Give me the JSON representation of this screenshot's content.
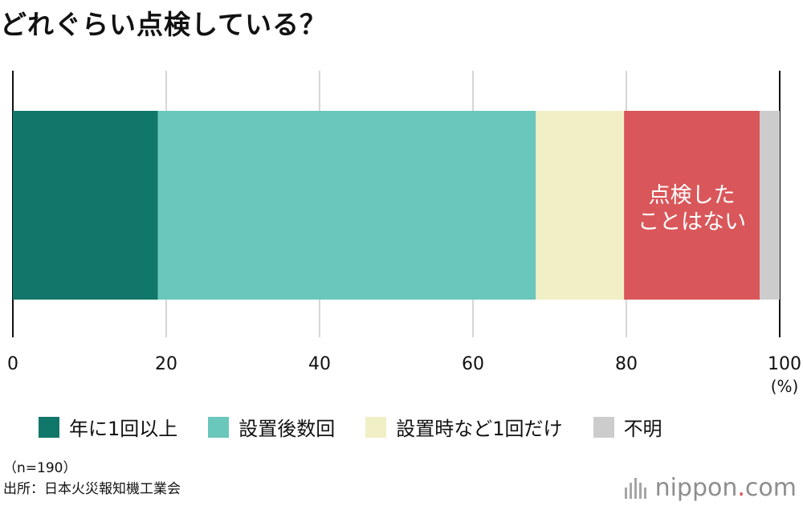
{
  "title": "どれぐらい点検している？",
  "chart_data": {
    "type": "bar",
    "orientation": "horizontal-stacked",
    "series": [
      {
        "name": "年に1回以上",
        "value": 18.9,
        "color": "#11776a"
      },
      {
        "name": "設置後数回",
        "value": 49.3,
        "color": "#6ac7bb"
      },
      {
        "name": "設置時など1回だけ",
        "value": 11.5,
        "color": "#f1efc6"
      },
      {
        "name": "不明",
        "value": 2.6,
        "color": "#cccccc"
      }
    ],
    "order": [
      "年に1回以上",
      "設置後数回",
      "設置時など1回だけ",
      "点検したことはない",
      "不明"
    ],
    "unlegended_segment": {
      "label_lines": [
        "点検した",
        "ことはない"
      ],
      "value": 17.7,
      "color": "#d9575a"
    },
    "x_ticks": [
      "0",
      "20",
      "40",
      "60",
      "80",
      "100"
    ],
    "xlim": [
      0,
      100
    ],
    "unit": "(%)",
    "grid": true,
    "legend": "bottom"
  },
  "notes": {
    "n": "（n=190）",
    "source": "出所：日本火災報知機工業会"
  },
  "logo": {
    "main": "nippon",
    "dot": ".",
    "tld": "com"
  }
}
